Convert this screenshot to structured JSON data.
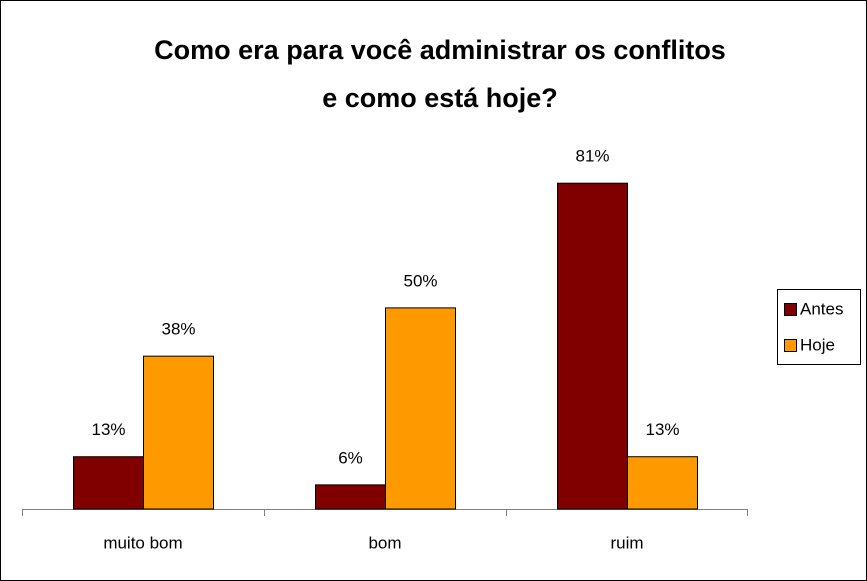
{
  "chart_data": {
    "type": "bar",
    "title": [
      "Como era para você administrar os conflitos",
      "e como está hoje?"
    ],
    "categories": [
      "muito bom",
      "bom",
      "ruim"
    ],
    "series": [
      {
        "name": "Antes",
        "color": "#800000",
        "values": [
          13,
          6,
          81
        ],
        "value_labels": [
          "13%",
          "6%",
          "81%"
        ]
      },
      {
        "name": "Hoje",
        "color": "#ff9900",
        "values": [
          38,
          50,
          13
        ],
        "value_labels": [
          "38%",
          "50%",
          "13%"
        ]
      }
    ],
    "ylim": [
      0,
      90
    ],
    "legend": "right"
  }
}
